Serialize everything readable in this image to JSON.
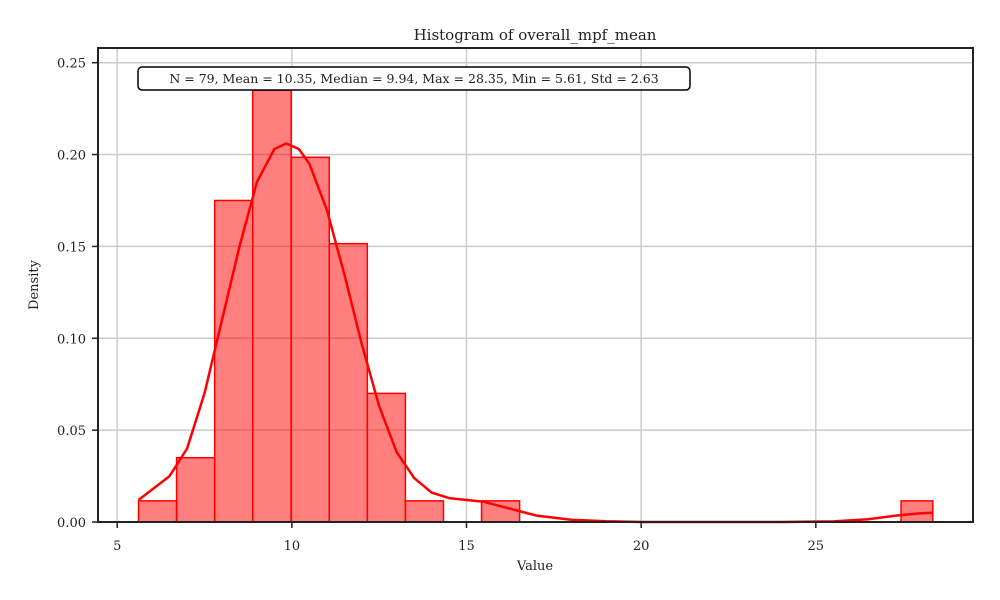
{
  "chart_data": {
    "type": "histogram",
    "title": "Histogram of overall_mpf_mean",
    "xlabel": "Value",
    "ylabel": "Density",
    "xlim": [
      4.45,
      29.5
    ],
    "ylim": [
      0,
      0.258
    ],
    "xticks": [
      5,
      10,
      15,
      20,
      25
    ],
    "yticks": [
      0.0,
      0.05,
      0.1,
      0.15,
      0.2,
      0.25
    ],
    "ytick_labels": [
      "0.00",
      "0.05",
      "0.10",
      "0.15",
      "0.20",
      "0.25"
    ],
    "grid": true,
    "bar_color": "#ff0000",
    "bar_fill_color": "#ff8080",
    "kde_color": "#ff0000",
    "bins": [
      {
        "x0": 5.61,
        "x1": 6.7,
        "density": 0.0115
      },
      {
        "x0": 6.7,
        "x1": 7.79,
        "density": 0.035
      },
      {
        "x0": 7.79,
        "x1": 8.88,
        "density": 0.175
      },
      {
        "x0": 8.88,
        "x1": 9.98,
        "density": 0.235
      },
      {
        "x0": 9.98,
        "x1": 11.07,
        "density": 0.1985
      },
      {
        "x0": 11.07,
        "x1": 12.16,
        "density": 0.1515
      },
      {
        "x0": 12.16,
        "x1": 13.25,
        "density": 0.07
      },
      {
        "x0": 13.25,
        "x1": 14.34,
        "density": 0.0115
      },
      {
        "x0": 14.34,
        "x1": 15.43,
        "density": 0.0
      },
      {
        "x0": 15.43,
        "x1": 16.52,
        "density": 0.0115
      },
      {
        "x0": 16.52,
        "x1": 17.61,
        "density": 0.0
      },
      {
        "x0": 17.61,
        "x1": 18.71,
        "density": 0.0
      },
      {
        "x0": 18.71,
        "x1": 19.8,
        "density": 0.0
      },
      {
        "x0": 19.8,
        "x1": 20.89,
        "density": 0.0
      },
      {
        "x0": 20.89,
        "x1": 21.98,
        "density": 0.0
      },
      {
        "x0": 21.98,
        "x1": 23.07,
        "density": 0.0
      },
      {
        "x0": 23.07,
        "x1": 24.16,
        "density": 0.0
      },
      {
        "x0": 24.16,
        "x1": 25.25,
        "density": 0.0
      },
      {
        "x0": 25.25,
        "x1": 26.35,
        "density": 0.0
      },
      {
        "x0": 26.35,
        "x1": 27.44,
        "density": 0.0
      },
      {
        "x0": 27.44,
        "x1": 28.35,
        "density": 0.0115
      }
    ],
    "kde": {
      "x": [
        5.61,
        6.5,
        7.0,
        7.5,
        8.0,
        8.5,
        9.0,
        9.5,
        9.84,
        10.2,
        10.5,
        11.0,
        11.5,
        12.0,
        12.5,
        13.0,
        13.5,
        14.0,
        14.5,
        15.0,
        15.5,
        16.0,
        16.5,
        17.0,
        18.0,
        19.0,
        20.0,
        22.0,
        24.0,
        25.5,
        26.5,
        27.3,
        28.0,
        28.35
      ],
      "y": [
        0.012,
        0.025,
        0.04,
        0.07,
        0.11,
        0.15,
        0.185,
        0.203,
        0.206,
        0.203,
        0.195,
        0.17,
        0.135,
        0.097,
        0.063,
        0.038,
        0.024,
        0.016,
        0.013,
        0.012,
        0.011,
        0.0085,
        0.006,
        0.0035,
        0.0012,
        0.0004,
        0.0,
        0.0,
        0.0,
        0.0003,
        0.0015,
        0.0035,
        0.0048,
        0.005
      ]
    },
    "annotation": "N = 79, Mean = 10.35, Median = 9.94, Max = 28.35, Min = 5.61, Std = 2.63"
  }
}
